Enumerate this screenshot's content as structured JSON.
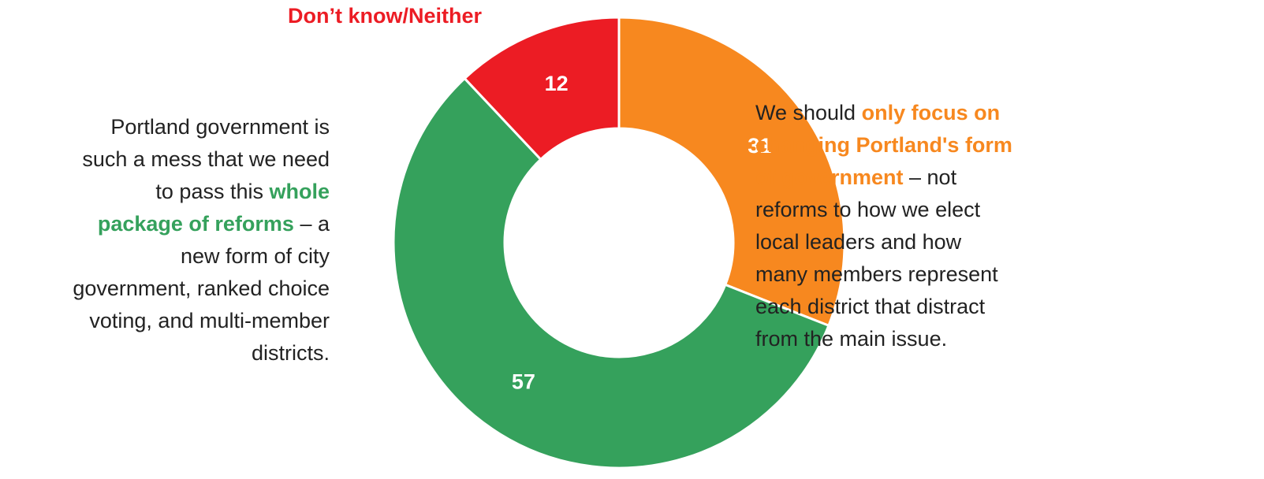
{
  "chart_data": {
    "type": "pie",
    "categories": [
      null,
      null,
      "Don’t know/Neither"
    ],
    "values": [
      31,
      57,
      12
    ],
    "colors": [
      "#f7881f",
      "#35a15c",
      "#ec1c24"
    ],
    "annotations": [
      {
        "side": "right",
        "color": "#f7881f",
        "lines": [
          [
            {
              "text": "We should "
            },
            {
              "text": "only focus on",
              "bold": true
            }
          ],
          [
            {
              "text": "changing Portland's form",
              "bold": true
            }
          ],
          [
            {
              "text": "of government",
              "bold": true
            },
            {
              "text": " – not"
            }
          ],
          [
            {
              "text": "reforms to how we elect"
            }
          ],
          [
            {
              "text": "local leaders and how"
            }
          ],
          [
            {
              "text": "many members represent"
            }
          ],
          [
            {
              "text": "each district that distract"
            }
          ],
          [
            {
              "text": "from the main issue."
            }
          ]
        ]
      },
      {
        "side": "left",
        "color": "#35a15c",
        "lines": [
          [
            {
              "text": "Portland government is"
            }
          ],
          [
            {
              "text": "such a mess that we need"
            }
          ],
          [
            {
              "text": "to pass this "
            },
            {
              "text": "whole",
              "bold": true
            }
          ],
          [
            {
              "text": "package of reforms",
              "bold": true
            },
            {
              "text": " – a"
            }
          ],
          [
            {
              "text": "new form of city"
            }
          ],
          [
            {
              "text": "government, ranked choice"
            }
          ],
          [
            {
              "text": "voting, and multi-member"
            }
          ],
          [
            {
              "text": "districts."
            }
          ]
        ]
      }
    ]
  }
}
